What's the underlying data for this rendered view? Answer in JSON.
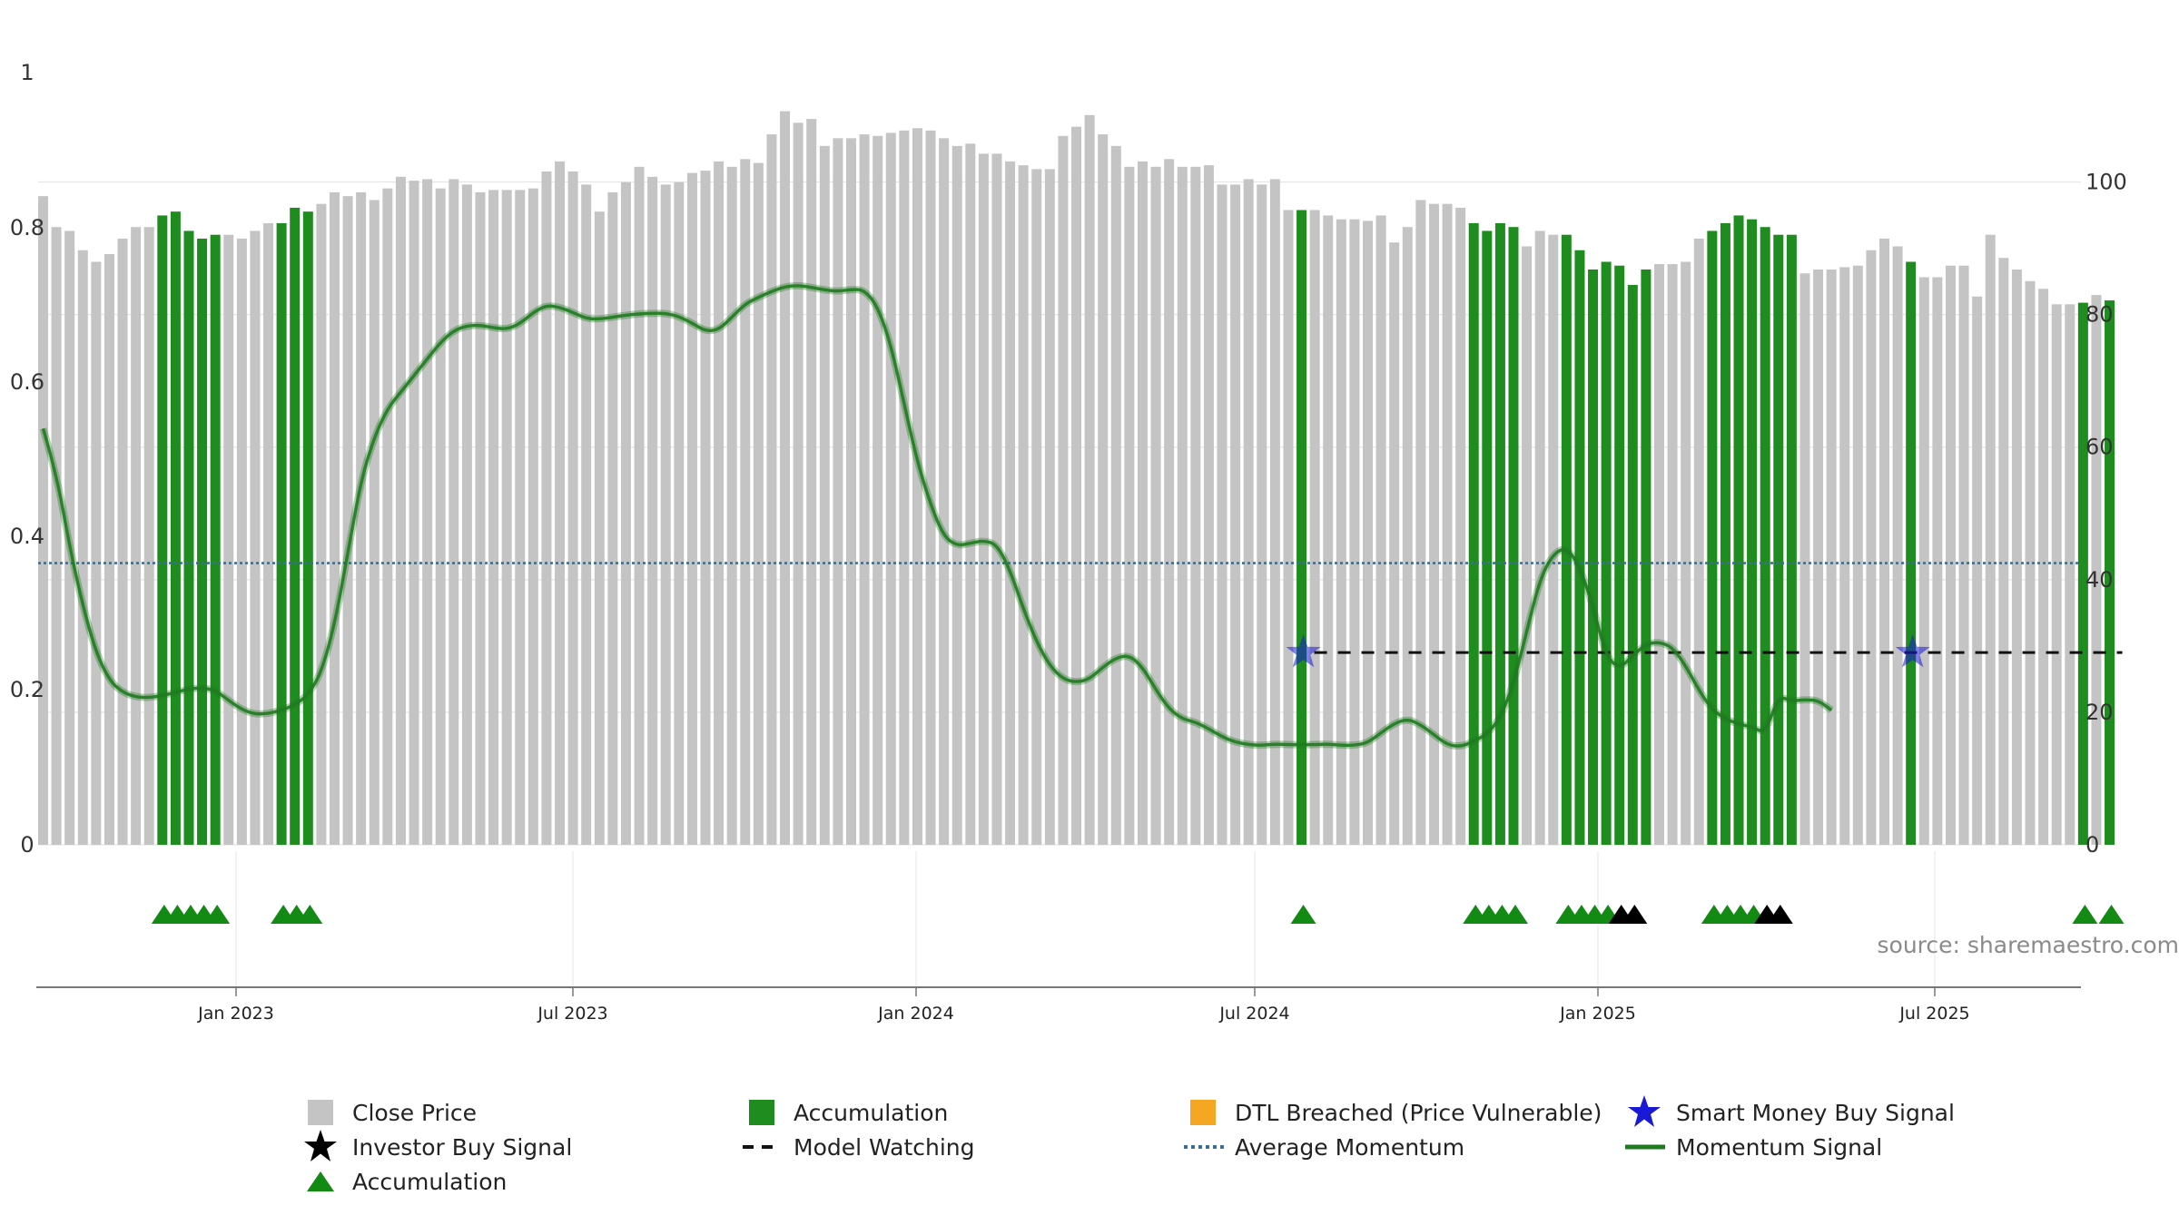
{
  "chart_data": {
    "type": "bar",
    "title": "",
    "x_range": [
      "2022-09",
      "2025-09"
    ],
    "x_ticks": [
      "Jan 2023",
      "Jul 2023",
      "Jan 2024",
      "Jul 2024",
      "Jan 2025",
      "Jul 2025"
    ],
    "left_axis": {
      "ticks": [
        "0",
        "0.2",
        "0.4",
        "0.6",
        "0.8",
        "1"
      ],
      "range": [
        0,
        1
      ]
    },
    "right_axis": {
      "ticks": [
        "0",
        "20",
        "40",
        "60",
        "80",
        "100"
      ],
      "range": [
        0,
        116.5
      ]
    },
    "series": [
      {
        "name": "Close Price",
        "kind": "bar",
        "color": "#c4c4c4",
        "values": [
          0.84,
          0.8,
          0.795,
          0.77,
          0.755,
          0.765,
          0.785,
          0.8,
          0.8,
          0.815,
          0.82,
          0.795,
          0.785,
          0.79,
          0.79,
          0.785,
          0.795,
          0.805,
          0.805,
          0.825,
          0.82,
          0.83,
          0.845,
          0.84,
          0.845,
          0.835,
          0.85,
          0.865,
          0.86,
          0.862,
          0.85,
          0.862,
          0.855,
          0.845,
          0.848,
          0.848,
          0.848,
          0.85,
          0.872,
          0.885,
          0.872,
          0.855,
          0.82,
          0.845,
          0.858,
          0.878,
          0.865,
          0.855,
          0.858,
          0.87,
          0.873,
          0.885,
          0.878,
          0.888,
          0.883,
          0.92,
          0.95,
          0.935,
          0.94,
          0.905,
          0.915,
          0.915,
          0.92,
          0.918,
          0.922,
          0.925,
          0.928,
          0.925,
          0.915,
          0.905,
          0.908,
          0.895,
          0.895,
          0.885,
          0.88,
          0.875,
          0.875,
          0.918,
          0.93,
          0.945,
          0.92,
          0.905,
          0.878,
          0.885,
          0.878,
          0.888,
          0.878,
          0.878,
          0.88,
          0.855,
          0.855,
          0.862,
          0.855,
          0.862,
          0.822,
          0.822,
          0.822,
          0.815,
          0.81,
          0.81,
          0.808,
          0.815,
          0.78,
          0.8,
          0.835,
          0.83,
          0.83,
          0.825,
          0.805,
          0.795,
          0.805,
          0.8,
          0.775,
          0.795,
          0.79,
          0.79,
          0.77,
          0.745,
          0.755,
          0.75,
          0.725,
          0.745,
          0.752,
          0.752,
          0.755,
          0.785,
          0.795,
          0.805,
          0.815,
          0.81,
          0.8,
          0.79,
          0.79,
          0.74,
          0.745,
          0.745,
          0.748,
          0.75,
          0.77,
          0.785,
          0.775,
          0.755,
          0.735,
          0.735,
          0.75,
          0.75,
          0.71,
          0.79,
          0.76,
          0.745,
          0.73,
          0.72,
          0.7,
          0.7,
          0.702,
          0.712,
          0.705
        ]
      },
      {
        "name": "Momentum Signal",
        "kind": "line",
        "axis": "right",
        "color": "#1f7a1f",
        "values": [
          62.8,
          56,
          45,
          36,
          29,
          24.8,
          23,
          22.3,
          22.2,
          22.5,
          23,
          23.5,
          23.7,
          23.3,
          21.8,
          20.4,
          19.7,
          19.8,
          20.3,
          21.1,
          22.6,
          26,
          33.2,
          44,
          55,
          61.5,
          65.8,
          68.3,
          70.8,
          73.3,
          75.8,
          77.6,
          78.3,
          78.4,
          78,
          77.8,
          78.6,
          80.3,
          81.4,
          81.1,
          80.3,
          79.4,
          79.3,
          79.6,
          79.9,
          80.1,
          80.2,
          80.2,
          79.7,
          78.7,
          77.5,
          77.7,
          79.6,
          81.6,
          82.6,
          83.5,
          84.2,
          84.4,
          84.1,
          83.7,
          83.5,
          83.8,
          83.7,
          81.2,
          75.4,
          66.5,
          57.8,
          51.3,
          46.5,
          45.1,
          45.5,
          45.9,
          45.3,
          41.4,
          35.6,
          30.6,
          27,
          25,
          24.5,
          25,
          26.8,
          28.2,
          28.6,
          26.8,
          23.4,
          20.5,
          19,
          18.5,
          17.5,
          16.3,
          15.5,
          15.1,
          15,
          15.2,
          15.1,
          15.1,
          15.1,
          15.2,
          15,
          15,
          15.4,
          16.9,
          18.3,
          19,
          18.1,
          16.6,
          15.1,
          14.8,
          15.6,
          16.7,
          19.1,
          24.3,
          32.2,
          40.1,
          43.9,
          44.9,
          42,
          36,
          28.4,
          26.6,
          28.5,
          30.3,
          30.6,
          29.8,
          27,
          23.3,
          20.4,
          19,
          18.2,
          17.8,
          16.8,
          22.4,
          21.7,
          21.9,
          21.8,
          20.3
        ]
      },
      {
        "name": "Average Momentum",
        "kind": "hline",
        "axis": "right",
        "value": 42.5,
        "color": "#3c6e96"
      }
    ],
    "accumulation_bars": [
      9,
      10,
      11,
      12,
      13,
      18,
      19,
      20,
      95,
      108,
      109,
      110,
      111,
      115,
      116,
      117,
      118,
      119,
      120,
      121,
      126,
      127,
      128,
      129,
      130,
      131,
      132,
      141,
      154,
      156
    ],
    "model_watching": [
      {
        "from": 95,
        "to": 156,
        "value": 29
      }
    ],
    "smart_money_buy_signals": [
      {
        "index": 95,
        "value": 29
      },
      {
        "index": 141,
        "value": 29
      }
    ],
    "accumulation_triangles": [
      9,
      10,
      11,
      12,
      13,
      18,
      19,
      20,
      95,
      108,
      109,
      110,
      111,
      115,
      116,
      117,
      118,
      126,
      127,
      128,
      129,
      154,
      156
    ],
    "investor_buy_signals": [
      119,
      120,
      130,
      131
    ],
    "legend": [
      {
        "label": "Close Price",
        "symbol": "gray-square-icon"
      },
      {
        "label": "Accumulation",
        "symbol": "green-square-icon"
      },
      {
        "label": "DTL Breached (Price Vulnerable)",
        "symbol": "orange-square-icon"
      },
      {
        "label": "Smart Money Buy Signal",
        "symbol": "blue-star-icon"
      },
      {
        "label": "Investor Buy Signal",
        "symbol": "black-star-icon"
      },
      {
        "label": "Model Watching",
        "symbol": "dashed-line-icon"
      },
      {
        "label": "Average Momentum",
        "symbol": "dotted-line-icon"
      },
      {
        "label": "Momentum Signal",
        "symbol": "solid-line-icon"
      },
      {
        "label": "Accumulation",
        "symbol": "green-triangle-icon"
      }
    ],
    "source": "source: sharemaestro.com"
  },
  "colors": {
    "close_price": "#c4c4c4",
    "accumulation": "#1e8c1e",
    "dtl_breached": "#f5a623",
    "smart_money": "#1a1ad6",
    "investor": "#000000",
    "model_watching": "#111111",
    "average_momentum": "#3c6e96",
    "momentum": "#1f7a1f",
    "triangle": "#138a13"
  }
}
